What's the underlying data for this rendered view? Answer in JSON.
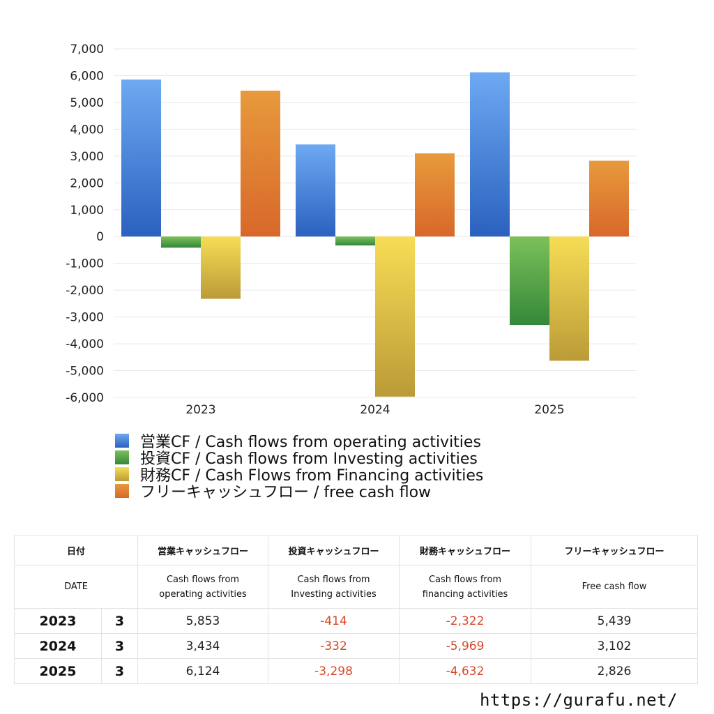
{
  "chart_data": {
    "type": "bar",
    "categories": [
      "2023",
      "2024",
      "2025"
    ],
    "series": [
      {
        "name": "営業CF / Cash flows from operating activities",
        "values": [
          5853,
          3434,
          6124
        ],
        "color": "#3a78d8"
      },
      {
        "name": "投資CF / Cash flows from Investing activities",
        "values": [
          -414,
          -332,
          -3298
        ],
        "color": "#4a9e3c"
      },
      {
        "name": "財務CF / Cash Flows from Financing activities",
        "values": [
          -2322,
          -5969,
          -4632
        ],
        "color": "#d9c044"
      },
      {
        "name": "フリーキャッシュフロー / free cash flow",
        "values": [
          5439,
          3102,
          2826
        ],
        "color": "#e07c2c"
      }
    ],
    "ylim": [
      -6000,
      7000
    ],
    "yticks": [
      "7,000",
      "6,000",
      "5,000",
      "4,000",
      "3,000",
      "2,000",
      "1,000",
      "0",
      "-1,000",
      "-2,000",
      "-3,000",
      "-4,000",
      "-5,000",
      "-6,000"
    ],
    "grid": true,
    "legend_position": "bottom-left"
  },
  "table": {
    "header": [
      "日付",
      "営業キャッシュフロー",
      "投資キャッシュフロー",
      "財務キャッシュフロー",
      "フリーキャッシュフロー"
    ],
    "subheader": {
      "date": "DATE",
      "operating": [
        "Cash flows from",
        "operating activities"
      ],
      "investing": [
        "Cash flows from",
        "Investing activities"
      ],
      "financing": [
        "Cash flows from",
        "financing activities"
      ],
      "free": "Free cash flow"
    },
    "rows": [
      {
        "year": "2023",
        "month": "3",
        "operating": "5,853",
        "investing": "-414",
        "financing": "-2,322",
        "free": "5,439"
      },
      {
        "year": "2024",
        "month": "3",
        "operating": "3,434",
        "investing": "-332",
        "financing": "-5,969",
        "free": "3,102"
      },
      {
        "year": "2025",
        "month": "3",
        "operating": "6,124",
        "investing": "-3,298",
        "financing": "-4,632",
        "free": "2,826"
      }
    ],
    "negative_color": "#d9482b"
  },
  "watermark": "https://gurafu.net/"
}
